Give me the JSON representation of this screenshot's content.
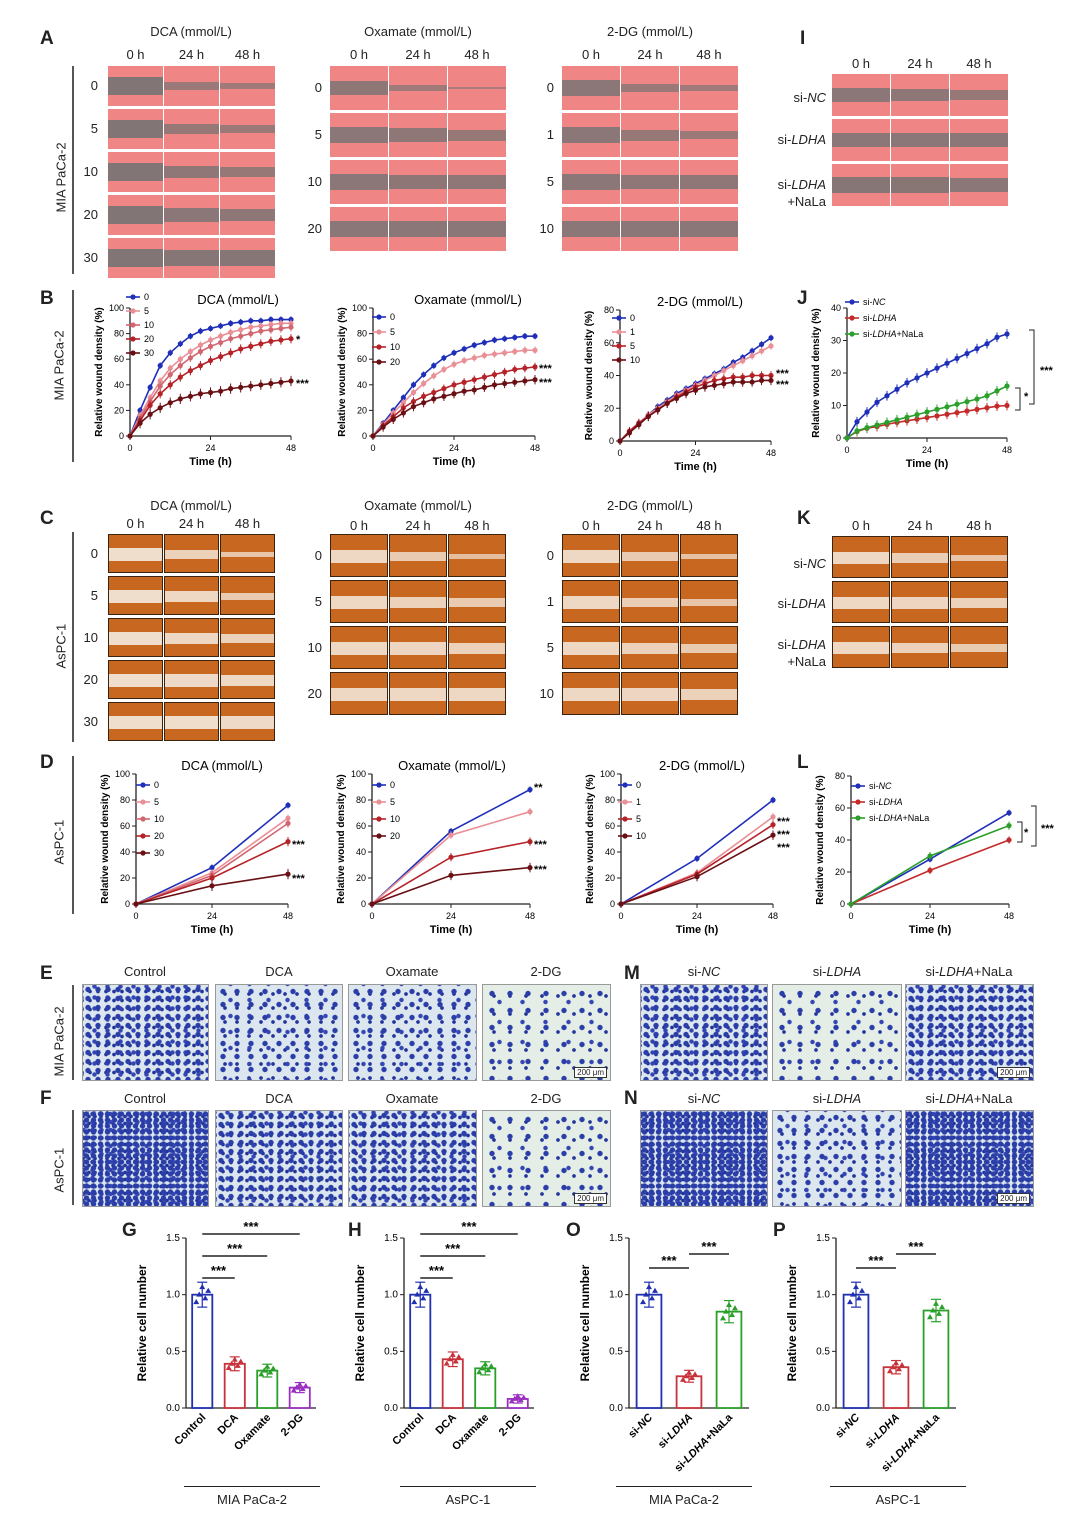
{
  "letters": {
    "A": "A",
    "B": "B",
    "C": "C",
    "D": "D",
    "E": "E",
    "F": "F",
    "G": "G",
    "H": "H",
    "I": "I",
    "J": "J",
    "K": "K",
    "L": "L",
    "M": "M",
    "N": "N",
    "O": "O",
    "P": "P"
  },
  "common": {
    "t0": "0 h",
    "t24": "24 h",
    "t48": "48 h",
    "mia": "MIA PaCa-2",
    "aspc": "AsPC-1",
    "time": "Time (h)",
    "rwd": "Relative wound density (%)",
    "rcn": "Relative cell number",
    "scale": "200 μm",
    "star1": "*",
    "star2": "**",
    "star3": "***"
  },
  "drugs": {
    "dca": "DCA (mmol/L)",
    "oxa": "Oxamate (mmol/L)",
    "dg": "2-DG (mmol/L)"
  },
  "doses": {
    "dca": [
      "0",
      "5",
      "10",
      "20",
      "30"
    ],
    "oxa": [
      "0",
      "5",
      "10",
      "20"
    ],
    "dg": [
      "0",
      "1",
      "5",
      "10"
    ]
  },
  "si": {
    "nc_pre": "si-",
    "nc": "NC",
    "ldha_pre": "si-",
    "ldha": "LDHA",
    "nala": "+NaLa"
  },
  "transwell": {
    "control": "Control",
    "dca": "DCA",
    "oxa": "Oxamate",
    "dg": "2-DG"
  },
  "chart_data": [
    {
      "panel": "B1",
      "type": "line",
      "title": "DCA (mmol/L)",
      "xlabel": "Time (h)",
      "ylabel": "Relative wound density (%)",
      "ylim": [
        0,
        100
      ],
      "xlim": [
        0,
        48
      ],
      "x": [
        0,
        3,
        6,
        9,
        12,
        15,
        18,
        21,
        24,
        27,
        30,
        33,
        36,
        39,
        42,
        45,
        48
      ],
      "series": [
        {
          "name": "0",
          "color": "#1f2fb8",
          "values": [
            0,
            20,
            38,
            55,
            65,
            72,
            78,
            82,
            84,
            86,
            88,
            89,
            90,
            90,
            91,
            91,
            91
          ]
        },
        {
          "name": "5",
          "color": "#e98f96",
          "values": [
            0,
            16,
            30,
            43,
            53,
            60,
            66,
            71,
            75,
            78,
            81,
            83,
            85,
            86,
            87,
            88,
            88
          ]
        },
        {
          "name": "10",
          "color": "#d26670",
          "values": [
            0,
            14,
            27,
            39,
            48,
            55,
            61,
            66,
            70,
            73,
            76,
            78,
            80,
            82,
            83,
            84,
            85
          ]
        },
        {
          "name": "20",
          "color": "#b52228",
          "values": [
            0,
            12,
            24,
            33,
            40,
            46,
            51,
            55,
            59,
            62,
            65,
            68,
            70,
            72,
            74,
            75,
            76
          ]
        },
        {
          "name": "30",
          "color": "#6a1014",
          "values": [
            0,
            10,
            17,
            22,
            26,
            29,
            31,
            33,
            34,
            35,
            37,
            38,
            39,
            40,
            41,
            42,
            43
          ]
        }
      ],
      "annotations": [
        "*",
        "***"
      ]
    },
    {
      "panel": "B2",
      "type": "line",
      "title": "Oxamate (mmol/L)",
      "xlabel": "Time (h)",
      "ylabel": "Relative wound density (%)",
      "ylim": [
        0,
        100
      ],
      "xlim": [
        0,
        48
      ],
      "x": [
        0,
        3,
        6,
        9,
        12,
        15,
        18,
        21,
        24,
        27,
        30,
        33,
        36,
        39,
        42,
        45,
        48
      ],
      "series": [
        {
          "name": "0",
          "color": "#1f2fb8",
          "values": [
            0,
            10,
            20,
            30,
            40,
            48,
            55,
            61,
            65,
            68,
            71,
            73,
            75,
            76,
            77,
            78,
            78
          ]
        },
        {
          "name": "5",
          "color": "#e98f96",
          "values": [
            0,
            9,
            18,
            26,
            34,
            41,
            47,
            52,
            56,
            59,
            61,
            63,
            64,
            65,
            66,
            67,
            67
          ]
        },
        {
          "name": "10",
          "color": "#b52228",
          "values": [
            0,
            8,
            15,
            22,
            27,
            31,
            34,
            37,
            40,
            42,
            44,
            46,
            48,
            50,
            52,
            53,
            54
          ]
        },
        {
          "name": "20",
          "color": "#6a1014",
          "values": [
            0,
            7,
            13,
            18,
            23,
            26,
            29,
            31,
            33,
            35,
            36,
            38,
            40,
            41,
            42,
            43,
            44
          ]
        }
      ],
      "annotations": [
        "***",
        "***"
      ]
    },
    {
      "panel": "B3",
      "type": "line",
      "title": "2-DG (mmol/L)",
      "xlabel": "Time (h)",
      "ylabel": "Relative wound density (%)",
      "ylim": [
        0,
        80
      ],
      "xlim": [
        0,
        48
      ],
      "x": [
        0,
        3,
        6,
        9,
        12,
        15,
        18,
        21,
        24,
        27,
        30,
        33,
        36,
        39,
        42,
        45,
        48
      ],
      "series": [
        {
          "name": "0",
          "color": "#1f2fb8",
          "values": [
            0,
            6,
            11,
            16,
            21,
            25,
            29,
            32,
            35,
            38,
            41,
            44,
            48,
            51,
            55,
            59,
            63
          ]
        },
        {
          "name": "1",
          "color": "#e98f96",
          "values": [
            0,
            6,
            11,
            16,
            20,
            24,
            28,
            31,
            34,
            37,
            40,
            43,
            46,
            49,
            52,
            55,
            58
          ]
        },
        {
          "name": "5",
          "color": "#b52228",
          "values": [
            0,
            6,
            11,
            15,
            19,
            23,
            27,
            30,
            33,
            35,
            37,
            38,
            39,
            39,
            40,
            40,
            40
          ]
        },
        {
          "name": "10",
          "color": "#6a1014",
          "values": [
            0,
            5,
            10,
            15,
            19,
            23,
            26,
            29,
            31,
            33,
            34,
            35,
            36,
            36,
            36,
            37,
            37
          ]
        }
      ],
      "annotations": [
        "***",
        "***"
      ]
    },
    {
      "panel": "J",
      "type": "line",
      "xlabel": "Time (h)",
      "ylabel": "Relative wound density (%)",
      "ylim": [
        0,
        40
      ],
      "xlim": [
        0,
        48
      ],
      "x": [
        0,
        3,
        6,
        9,
        12,
        15,
        18,
        21,
        24,
        27,
        30,
        33,
        36,
        39,
        42,
        45,
        48
      ],
      "series": [
        {
          "name": "si-NC",
          "color": "#1f2fb8",
          "values": [
            0,
            5,
            8,
            11,
            13,
            15,
            17,
            18.5,
            20,
            21.5,
            23,
            24.5,
            26,
            27.5,
            29,
            31,
            32
          ]
        },
        {
          "name": "si-LDHA",
          "color": "#c42a2a",
          "values": [
            0,
            2,
            3,
            3.5,
            4.2,
            4.8,
            5.3,
            5.8,
            6.3,
            6.8,
            7.3,
            7.8,
            8.3,
            8.8,
            9.3,
            9.8,
            10
          ]
        },
        {
          "name": "si-LDHA+NaLa",
          "color": "#2aa02a",
          "values": [
            0,
            2.2,
            3.2,
            4,
            4.8,
            5.6,
            6.4,
            7.2,
            8,
            8.8,
            9.6,
            10.4,
            11.2,
            12,
            13,
            14.5,
            16
          ]
        }
      ],
      "annotations": [
        "***",
        "*"
      ]
    },
    {
      "panel": "D1",
      "type": "line",
      "title": "DCA (mmol/L)",
      "xlabel": "Time (h)",
      "ylabel": "Relative wound density (%)",
      "ylim": [
        0,
        100
      ],
      "xlim": [
        0,
        48
      ],
      "x": [
        0,
        24,
        48
      ],
      "series": [
        {
          "name": "0",
          "color": "#1f2fb8",
          "values": [
            0,
            28,
            76
          ]
        },
        {
          "name": "5",
          "color": "#e98f96",
          "values": [
            0,
            24,
            66
          ]
        },
        {
          "name": "10",
          "color": "#d26670",
          "values": [
            0,
            22,
            62
          ]
        },
        {
          "name": "20",
          "color": "#b52228",
          "values": [
            0,
            20,
            48
          ]
        },
        {
          "name": "30",
          "color": "#6a1014",
          "values": [
            0,
            14,
            23
          ]
        }
      ],
      "annotations": [
        "***",
        "***"
      ]
    },
    {
      "panel": "D2",
      "type": "line",
      "title": "Oxamate (mmol/L)",
      "xlabel": "Time (h)",
      "ylabel": "Relative wound density (%)",
      "ylim": [
        0,
        100
      ],
      "xlim": [
        0,
        48
      ],
      "x": [
        0,
        24,
        48
      ],
      "series": [
        {
          "name": "0",
          "color": "#1f2fb8",
          "values": [
            0,
            56,
            88
          ]
        },
        {
          "name": "5",
          "color": "#e98f96",
          "values": [
            0,
            53,
            71
          ]
        },
        {
          "name": "10",
          "color": "#b52228",
          "values": [
            0,
            36,
            48
          ]
        },
        {
          "name": "20",
          "color": "#6a1014",
          "values": [
            0,
            22,
            28
          ]
        }
      ],
      "annotations": [
        "**",
        "***",
        "***"
      ]
    },
    {
      "panel": "D3",
      "type": "line",
      "title": "2-DG (mmol/L)",
      "xlabel": "Time (h)",
      "ylabel": "Relative wound density (%)",
      "ylim": [
        0,
        100
      ],
      "xlim": [
        0,
        48
      ],
      "x": [
        0,
        24,
        48
      ],
      "series": [
        {
          "name": "0",
          "color": "#1f2fb8",
          "values": [
            0,
            35,
            80
          ]
        },
        {
          "name": "1",
          "color": "#e98f96",
          "values": [
            0,
            24,
            67
          ]
        },
        {
          "name": "5",
          "color": "#b52228",
          "values": [
            0,
            23,
            61
          ]
        },
        {
          "name": "10",
          "color": "#6a1014",
          "values": [
            0,
            21,
            53
          ]
        }
      ],
      "annotations": [
        "***",
        "***",
        "***"
      ]
    },
    {
      "panel": "L",
      "type": "line",
      "xlabel": "Time (h)",
      "ylabel": "Relative wound density (%)",
      "ylim": [
        0,
        80
      ],
      "xlim": [
        0,
        48
      ],
      "x": [
        0,
        24,
        48
      ],
      "series": [
        {
          "name": "si-NC",
          "color": "#1f2fb8",
          "values": [
            0,
            28,
            57
          ]
        },
        {
          "name": "si-LDHA",
          "color": "#c42a2a",
          "values": [
            0,
            21,
            40
          ]
        },
        {
          "name": "si-LDHA+NaLa",
          "color": "#2aa02a",
          "values": [
            0,
            30,
            49
          ]
        }
      ],
      "annotations": [
        "***",
        "*"
      ]
    },
    {
      "panel": "G",
      "type": "bar",
      "group": "MIA PaCa-2",
      "ylabel": "Relative cell number",
      "ylim": [
        0,
        1.5
      ],
      "categories": [
        "Control",
        "DCA",
        "Oxamate",
        "2-DG"
      ],
      "values": [
        1.0,
        0.39,
        0.33,
        0.18
      ],
      "colors": [
        "#2030b0",
        "#c8323a",
        "#2aa02a",
        "#9a2fc0"
      ],
      "annotations": [
        "***",
        "***",
        "***"
      ]
    },
    {
      "panel": "H",
      "type": "bar",
      "group": "AsPC-1",
      "ylabel": "Relative cell number",
      "ylim": [
        0,
        1.5
      ],
      "categories": [
        "Control",
        "DCA",
        "Oxamate",
        "2-DG"
      ],
      "values": [
        1.0,
        0.43,
        0.35,
        0.08
      ],
      "colors": [
        "#2030b0",
        "#c8323a",
        "#2aa02a",
        "#9a2fc0"
      ],
      "annotations": [
        "***",
        "***",
        "***"
      ]
    },
    {
      "panel": "O",
      "type": "bar",
      "group": "MIA PaCa-2",
      "ylabel": "Relative cell number",
      "ylim": [
        0,
        1.5
      ],
      "categories": [
        "si-NC",
        "si-LDHA",
        "si-LDHA+NaLa"
      ],
      "values": [
        1.0,
        0.28,
        0.85
      ],
      "colors": [
        "#2030b0",
        "#c8323a",
        "#2aa02a"
      ],
      "annotations": [
        "***",
        "***"
      ]
    },
    {
      "panel": "P",
      "type": "bar",
      "group": "AsPC-1",
      "ylabel": "Relative cell number",
      "ylim": [
        0,
        1.5
      ],
      "categories": [
        "si-NC",
        "si-LDHA",
        "si-LDHA+NaLa"
      ],
      "values": [
        1.0,
        0.36,
        0.86
      ],
      "colors": [
        "#2030b0",
        "#c8323a",
        "#2aa02a"
      ],
      "annotations": [
        "***",
        "***"
      ]
    }
  ]
}
